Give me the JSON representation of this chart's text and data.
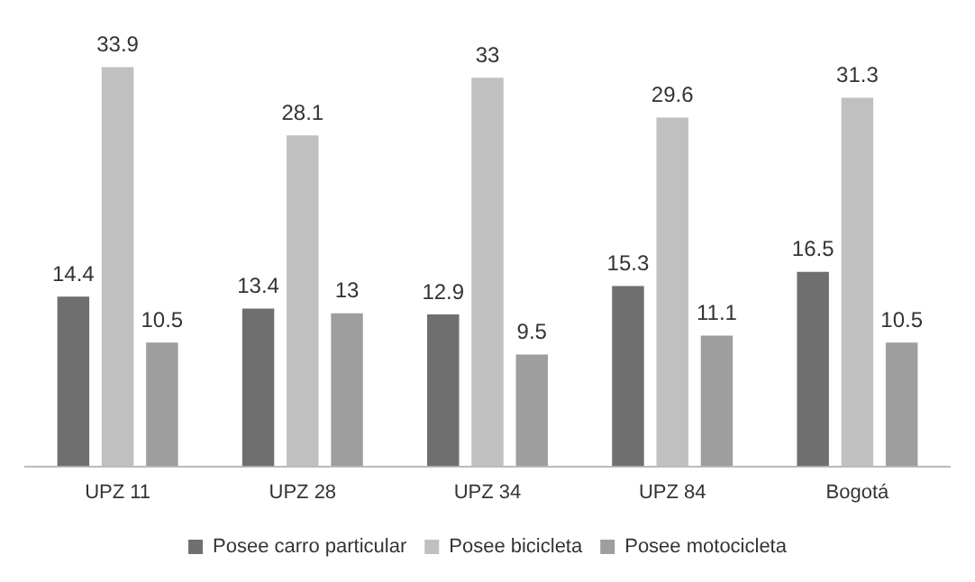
{
  "chart_data": {
    "type": "bar",
    "categories": [
      "UPZ 11",
      "UPZ 28",
      "UPZ 34",
      "UPZ 84",
      "Bogotá"
    ],
    "series": [
      {
        "name": "Posee carro particular",
        "color": "#6f6f6f",
        "values": [
          14.4,
          13.4,
          12.9,
          15.3,
          16.5
        ]
      },
      {
        "name": "Posee bicicleta",
        "color": "#c0c0c0",
        "values": [
          33.9,
          28.1,
          33,
          29.6,
          31.3
        ]
      },
      {
        "name": "Posee motocicleta",
        "color": "#9e9e9e",
        "values": [
          10.5,
          13,
          9.5,
          11.1,
          10.5
        ]
      }
    ],
    "data_labels": true,
    "legend": "bottom",
    "grid": false
  }
}
